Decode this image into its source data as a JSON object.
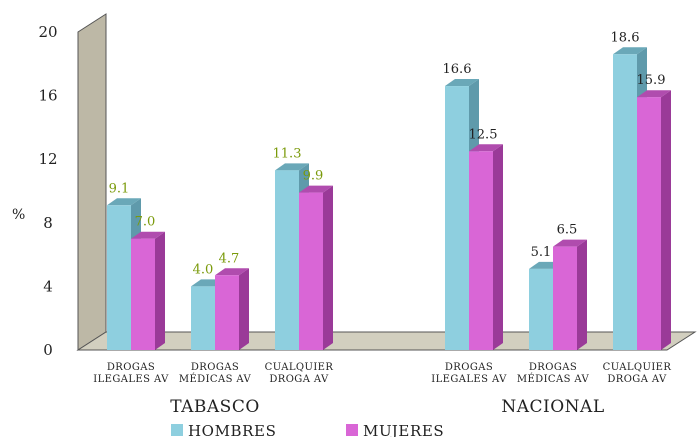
{
  "chart_data": {
    "type": "bar",
    "ylabel": "%",
    "ylim": [
      0,
      20
    ],
    "yticks": [
      0,
      4,
      8,
      12,
      16,
      20
    ],
    "groups": [
      {
        "name": "TABASCO",
        "value_label_color": "#7a9a0a",
        "categories": [
          [
            "DROGAS",
            "ILEGALES AV"
          ],
          [
            "DROGAS",
            "MÉDICAS AV"
          ],
          [
            "CUALQUIER",
            "DROGA AV"
          ]
        ],
        "series": [
          {
            "name": "HOMBRES",
            "values": [
              9.1,
              4.0,
              11.3
            ]
          },
          {
            "name": "MUJERES",
            "values": [
              7.0,
              4.7,
              9.9
            ]
          }
        ],
        "value_labels": [
          [
            "9.1",
            "4.0",
            "11.3"
          ],
          [
            "7.0",
            "4.7",
            "9.9"
          ]
        ]
      },
      {
        "name": "NACIONAL",
        "value_label_color": "#222222",
        "categories": [
          [
            "DROGAS",
            "ILEGALES AV"
          ],
          [
            "DROGAS",
            "MÉDICAS AV"
          ],
          [
            "CUALQUIER",
            "DROGA AV"
          ]
        ],
        "series": [
          {
            "name": "HOMBRES",
            "values": [
              16.6,
              5.1,
              18.6
            ]
          },
          {
            "name": "MUJERES",
            "values": [
              12.5,
              6.5,
              15.9
            ]
          }
        ],
        "value_labels": [
          [
            "16.6",
            "5.1",
            "18.6"
          ],
          [
            "12.5",
            "6.5",
            "15.9"
          ]
        ]
      }
    ],
    "legend": {
      "placement": "bottom",
      "entries": [
        "HOMBRES",
        "MUJERES"
      ]
    },
    "colors": {
      "hombres_front": "#8ecfdf",
      "hombres_side": "#5f9aab",
      "hombres_top": "#6aa8b8",
      "mujeres_front": "#d966d6",
      "mujeres_side": "#9a3a98",
      "mujeres_top": "#b04cae",
      "wall": "#bdb8a6",
      "floor": "#d2cfbf"
    },
    "grid": false
  }
}
